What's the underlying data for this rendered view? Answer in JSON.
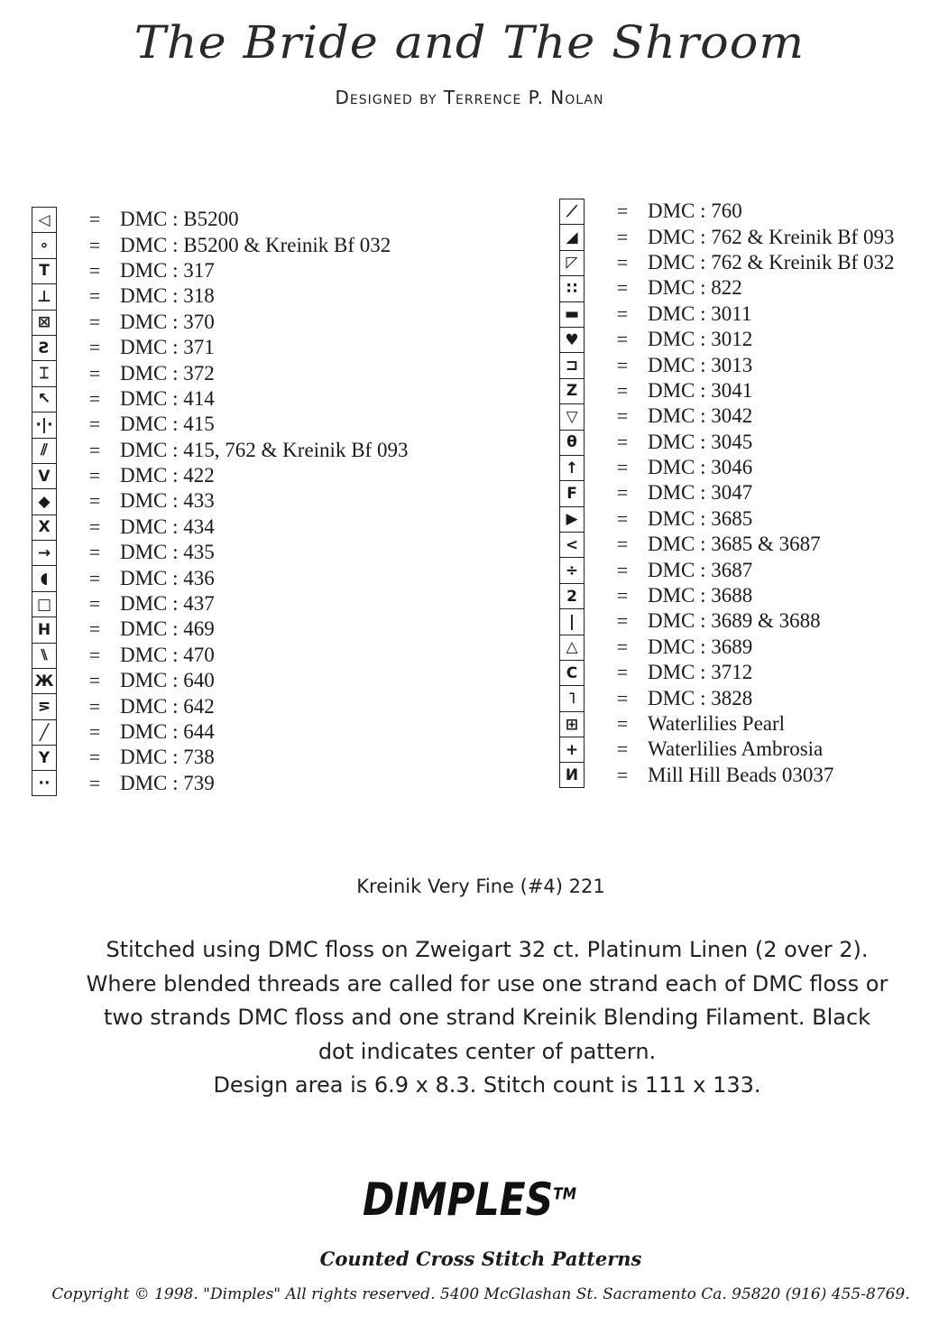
{
  "header": {
    "title": "The Bride and The Shroom",
    "designer": "Designed by Terrence P. Nolan"
  },
  "key_left": [
    {
      "symbol": "◁",
      "eq": "=",
      "thread": "DMC : B5200"
    },
    {
      "symbol": "∘",
      "eq": "=",
      "thread": "DMC : B5200 & Kreinik Bf 032"
    },
    {
      "symbol": "T",
      "eq": "=",
      "thread": "DMC : 317"
    },
    {
      "symbol": "⊥",
      "eq": "=",
      "thread": "DMC : 318"
    },
    {
      "symbol": "⊠",
      "eq": "=",
      "thread": "DMC : 370"
    },
    {
      "symbol": "Ƨ",
      "eq": "=",
      "thread": "DMC : 371"
    },
    {
      "symbol": "⌶",
      "eq": "=",
      "thread": "DMC : 372"
    },
    {
      "symbol": "↖",
      "eq": "=",
      "thread": "DMC : 414"
    },
    {
      "symbol": "·|·",
      "eq": "=",
      "thread": "DMC : 415"
    },
    {
      "symbol": "⫽",
      "eq": "=",
      "thread": "DMC : 415, 762 & Kreinik Bf 093"
    },
    {
      "symbol": "V",
      "eq": "=",
      "thread": "DMC : 422"
    },
    {
      "symbol": "◆",
      "eq": "=",
      "thread": "DMC : 433"
    },
    {
      "symbol": "X",
      "eq": "=",
      "thread": "DMC : 434"
    },
    {
      "symbol": "→",
      "eq": "=",
      "thread": "DMC : 435"
    },
    {
      "symbol": "◖",
      "eq": "=",
      "thread": "DMC : 436"
    },
    {
      "symbol": "□",
      "eq": "=",
      "thread": "DMC : 437"
    },
    {
      "symbol": "H",
      "eq": "=",
      "thread": "DMC : 469"
    },
    {
      "symbol": "⑊",
      "eq": "=",
      "thread": "DMC : 470"
    },
    {
      "symbol": "Ж",
      "eq": "=",
      "thread": "DMC : 640"
    },
    {
      "symbol": "⋝",
      "eq": "=",
      "thread": "DMC : 642"
    },
    {
      "symbol": "╱",
      "eq": "=",
      "thread": "DMC : 644"
    },
    {
      "symbol": "Y",
      "eq": "=",
      "thread": "DMC : 738"
    },
    {
      "symbol": "··",
      "eq": "=",
      "thread": "DMC : 739"
    }
  ],
  "key_right": [
    {
      "symbol": "⟋",
      "eq": "=",
      "thread": "DMC : 760"
    },
    {
      "symbol": "◢",
      "eq": "=",
      "thread": "DMC : 762 & Kreinik Bf 093"
    },
    {
      "symbol": "◸",
      "eq": "=",
      "thread": "DMC : 762 & Kreinik Bf 032"
    },
    {
      "symbol": "∷",
      "eq": "=",
      "thread": "DMC : 822"
    },
    {
      "symbol": "▬",
      "eq": "=",
      "thread": "DMC : 3011"
    },
    {
      "symbol": "♥",
      "eq": "=",
      "thread": "DMC : 3012"
    },
    {
      "symbol": "⊐",
      "eq": "=",
      "thread": "DMC : 3013"
    },
    {
      "symbol": "Z",
      "eq": "=",
      "thread": "DMC : 3041"
    },
    {
      "symbol": "▽",
      "eq": "=",
      "thread": "DMC : 3042"
    },
    {
      "symbol": "θ",
      "eq": "=",
      "thread": "DMC : 3045"
    },
    {
      "symbol": "↑",
      "eq": "=",
      "thread": "DMC : 3046"
    },
    {
      "symbol": "F",
      "eq": "=",
      "thread": "DMC : 3047"
    },
    {
      "symbol": "▶",
      "eq": "=",
      "thread": "DMC : 3685"
    },
    {
      "symbol": "<",
      "eq": "=",
      "thread": "DMC : 3685 & 3687"
    },
    {
      "symbol": "÷",
      "eq": "=",
      "thread": "DMC : 3687"
    },
    {
      "symbol": "2",
      "eq": "=",
      "thread": "DMC : 3688"
    },
    {
      "symbol": "|",
      "eq": "=",
      "thread": "DMC : 3689 & 3688"
    },
    {
      "symbol": "△",
      "eq": "=",
      "thread": "DMC : 3689"
    },
    {
      "symbol": "C",
      "eq": "=",
      "thread": "DMC : 3712"
    },
    {
      "symbol": "˥",
      "eq": "=",
      "thread": "DMC : 3828"
    },
    {
      "symbol": "⊞",
      "eq": "=",
      "thread": "Waterlilies Pearl"
    },
    {
      "symbol": "+",
      "eq": "=",
      "thread": "Waterlilies Ambrosia"
    },
    {
      "symbol": "И",
      "eq": "=",
      "thread": "Mill Hill Beads 03037"
    }
  ],
  "kreinik_note": "Kreinik Very Fine (#4) 221",
  "notes": [
    "Stitched using DMC floss on Zweigart  32 ct. Platinum Linen (2 over 2).",
    "Where blended threads are called for use one strand each of DMC floss or",
    "two strands DMC floss and one strand Kreinik Blending Filament.  Black",
    "dot indicates center of pattern.",
    "Design area is  6.9  x  8.3.  Stitch count is  111 x  133."
  ],
  "footer": {
    "brand": "DIMPLES",
    "trademark": "TM",
    "tagline": "Counted Cross Stitch Patterns",
    "copyright": "Copyright © 1998. \"Dimples\" All rights reserved.    5400 McGlashan St.  Sacramento Ca. 95820  (916) 455-8769."
  }
}
